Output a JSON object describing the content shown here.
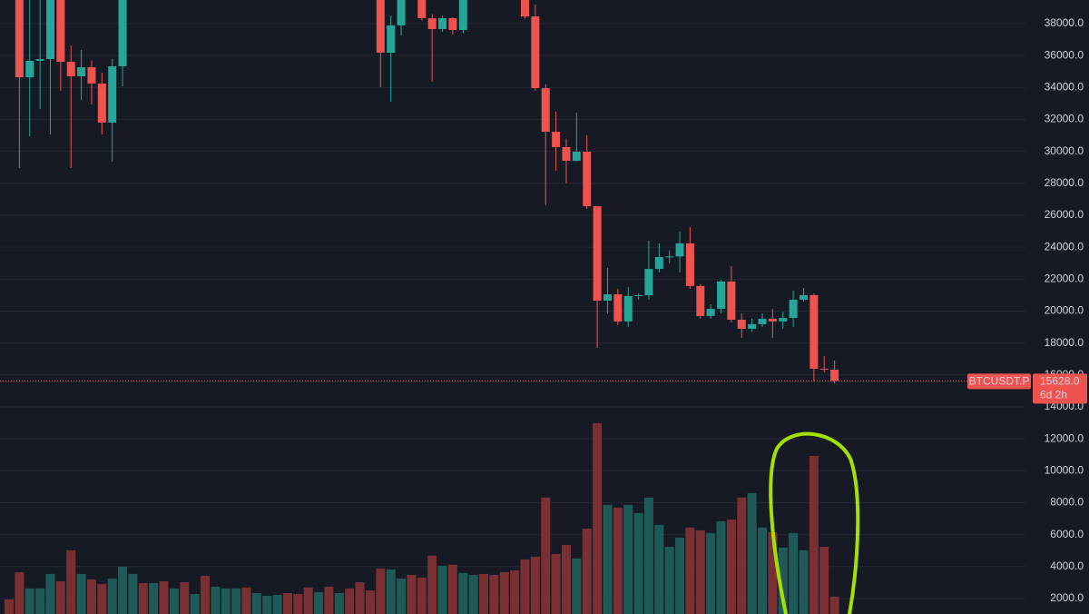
{
  "chart_data": {
    "type": "candlestick",
    "symbol": "BTCUSDT.P",
    "last_price": {
      "value": 15628,
      "label": "15628.0"
    },
    "countdown": "6d 2h",
    "up_color": "#26a69a",
    "down_color": "#ef5350",
    "grid": true,
    "ylim": [
      1030,
      39480
    ],
    "yticks": [
      {
        "value": 2000,
        "label": "2000.0"
      },
      {
        "value": 4000,
        "label": "4000.0"
      },
      {
        "value": 6000,
        "label": "6000.0"
      },
      {
        "value": 8000,
        "label": "8000.0"
      },
      {
        "value": 10000,
        "label": "10000.0"
      },
      {
        "value": 12000,
        "label": "12000.0"
      },
      {
        "value": 14000,
        "label": "14000.0"
      },
      {
        "value": 16000,
        "label": "16000.0"
      },
      {
        "value": 18000,
        "label": "18000.0"
      },
      {
        "value": 20000,
        "label": "20000.0"
      },
      {
        "value": 22000,
        "label": "22000.0"
      },
      {
        "value": 24000,
        "label": "24000.0"
      },
      {
        "value": 26000,
        "label": "26000.0"
      },
      {
        "value": 28000,
        "label": "28000.0"
      },
      {
        "value": 30000,
        "label": "30000.0"
      },
      {
        "value": 32000,
        "label": "32000.0"
      },
      {
        "value": 34000,
        "label": "34000.0"
      },
      {
        "value": 36000,
        "label": "36000.0"
      },
      {
        "value": 38000,
        "label": "38000.0"
      }
    ],
    "open": [
      null,
      40000,
      34640,
      35670,
      35780,
      39800,
      35610,
      34700,
      35270,
      34250,
      31800,
      35330,
      null,
      null,
      null,
      null,
      null,
      null,
      null,
      null,
      null,
      null,
      null,
      null,
      null,
      null,
      null,
      null,
      null,
      null,
      null,
      null,
      null,
      null,
      null,
      null,
      40200,
      36180,
      37890,
      null,
      39800,
      38340,
      37660,
      38340,
      37600,
      null,
      null,
      null,
      null,
      null,
      39900,
      38450,
      33960,
      31230,
      30270,
      29410,
      29980,
      26570,
      20650,
      21050,
      19350,
      20940,
      20990,
      22640,
      23380,
      23420,
      24240,
      21570,
      19690,
      20140,
      21850,
      19460,
      18890,
      19180,
      19520,
      19350,
      19570,
      20710,
      21000,
      16390,
      16330
    ],
    "high": [
      null,
      41000,
      40500,
      40000,
      40500,
      40200,
      36630,
      36350,
      35700,
      34930,
      35800,
      41000,
      null,
      null,
      null,
      null,
      null,
      null,
      null,
      null,
      null,
      null,
      null,
      null,
      null,
      null,
      null,
      null,
      null,
      null,
      null,
      null,
      null,
      null,
      null,
      null,
      40500,
      38500,
      40000,
      null,
      40200,
      38600,
      38500,
      38400,
      40000,
      null,
      null,
      null,
      null,
      null,
      40100,
      39190,
      34200,
      32500,
      30800,
      32430,
      31000,
      26570,
      22700,
      21400,
      21500,
      21100,
      24410,
      24240,
      23800,
      24980,
      25260,
      21690,
      20430,
      21950,
      22810,
      19850,
      19520,
      19860,
      20140,
      19970,
      21280,
      21450,
      21110,
      17180,
      16900
    ],
    "low": [
      null,
      28960,
      30950,
      32650,
      31060,
      33800,
      28960,
      33220,
      32940,
      31060,
      29350,
      34080,
      null,
      null,
      null,
      null,
      null,
      null,
      null,
      null,
      null,
      null,
      null,
      null,
      null,
      null,
      null,
      null,
      null,
      null,
      null,
      null,
      null,
      null,
      null,
      null,
      34020,
      33110,
      37260,
      null,
      38200,
      34360,
      37490,
      37320,
      37400,
      null,
      null,
      null,
      null,
      null,
      38300,
      33790,
      26630,
      28790,
      27990,
      29370,
      26400,
      17690,
      19850,
      19120,
      19000,
      20700,
      20710,
      22410,
      22990,
      22410,
      21400,
      19520,
      19520,
      19860,
      19290,
      18320,
      18720,
      19010,
      18310,
      18890,
      19010,
      20600,
      15590,
      16160,
      15460
    ],
    "close": [
      null,
      34640,
      35670,
      35780,
      40000,
      35610,
      34700,
      35270,
      34250,
      31800,
      35330,
      39600,
      null,
      null,
      null,
      null,
      null,
      null,
      null,
      null,
      null,
      null,
      null,
      null,
      null,
      null,
      null,
      null,
      null,
      null,
      null,
      null,
      null,
      null,
      null,
      null,
      36180,
      37890,
      39600,
      null,
      38340,
      37660,
      38340,
      37600,
      39500,
      null,
      null,
      null,
      null,
      null,
      38450,
      33960,
      31230,
      30270,
      29410,
      29980,
      26570,
      20650,
      21050,
      19350,
      20940,
      20990,
      22640,
      23380,
      23420,
      24240,
      21570,
      19690,
      20140,
      21850,
      19460,
      18890,
      19180,
      19520,
      19350,
      19570,
      20710,
      21000,
      16390,
      16330,
      15628
    ],
    "volume": [
      1940,
      3650,
      2630,
      2630,
      3540,
      3080,
      5020,
      3540,
      3200,
      2910,
      3250,
      3990,
      3540,
      2970,
      2970,
      3080,
      2630,
      3020,
      2280,
      3420,
      2740,
      2630,
      2630,
      2690,
      2340,
      2170,
      2230,
      2340,
      2280,
      2690,
      2400,
      2740,
      2340,
      2630,
      3020,
      2510,
      3880,
      3820,
      3250,
      3480,
      3310,
      4680,
      4050,
      4110,
      3600,
      3480,
      3540,
      3480,
      3650,
      3760,
      4450,
      4620,
      8320,
      4790,
      5360,
      4510,
      6380,
      12980,
      7860,
      7690,
      7860,
      7350,
      8320,
      6610,
      5240,
      5810,
      6440,
      6270,
      6100,
      6840,
      6950,
      8320,
      8600,
      6440,
      6150,
      5190,
      6100,
      5020,
      10930,
      5240,
      2120
    ],
    "volume_colors": [
      "#7a2f33",
      "#7a2f33",
      "#1e5a58",
      "#1e5a58",
      "#1e5a58",
      "#7a2f33",
      "#7a2f33",
      "#1e5a58",
      "#7a2f33",
      "#7a2f33",
      "#1e5a58",
      "#1e5a58",
      "#1e5a58",
      "#7a2f33",
      "#1e5a58",
      "#7a2f33",
      "#1e5a58",
      "#7a2f33",
      "#1e5a58",
      "#7a2f33",
      "#1e5a58",
      "#1e5a58",
      "#1e5a58",
      "#7a2f33",
      "#1e5a58",
      "#1e5a58",
      "#1e5a58",
      "#7a2f33",
      "#7a2f33",
      "#7a2f33",
      "#1e5a58",
      "#7a2f33",
      "#1e5a58",
      "#7a2f33",
      "#7a2f33",
      "#7a2f33",
      "#7a2f33",
      "#1e5a58",
      "#1e5a58",
      "#7a2f33",
      "#7a2f33",
      "#7a2f33",
      "#1e5a58",
      "#7a2f33",
      "#1e5a58",
      "#1e5a58",
      "#7a2f33",
      "#7a2f33",
      "#7a2f33",
      "#7a2f33",
      "#7a2f33",
      "#7a2f33",
      "#7a2f33",
      "#7a2f33",
      "#7a2f33",
      "#1e5a58",
      "#7a2f33",
      "#7a2f33",
      "#1e5a58",
      "#7a2f33",
      "#1e5a58",
      "#1e5a58",
      "#1e5a58",
      "#1e5a58",
      "#1e5a58",
      "#1e5a58",
      "#7a2f33",
      "#7a2f33",
      "#1e5a58",
      "#1e5a58",
      "#7a2f33",
      "#7a2f33",
      "#1e5a58",
      "#1e5a58",
      "#7a2f33",
      "#1e5a58",
      "#1e5a58",
      "#1e5a58",
      "#7a2f33",
      "#7a2f33",
      "#7a2f33"
    ]
  }
}
